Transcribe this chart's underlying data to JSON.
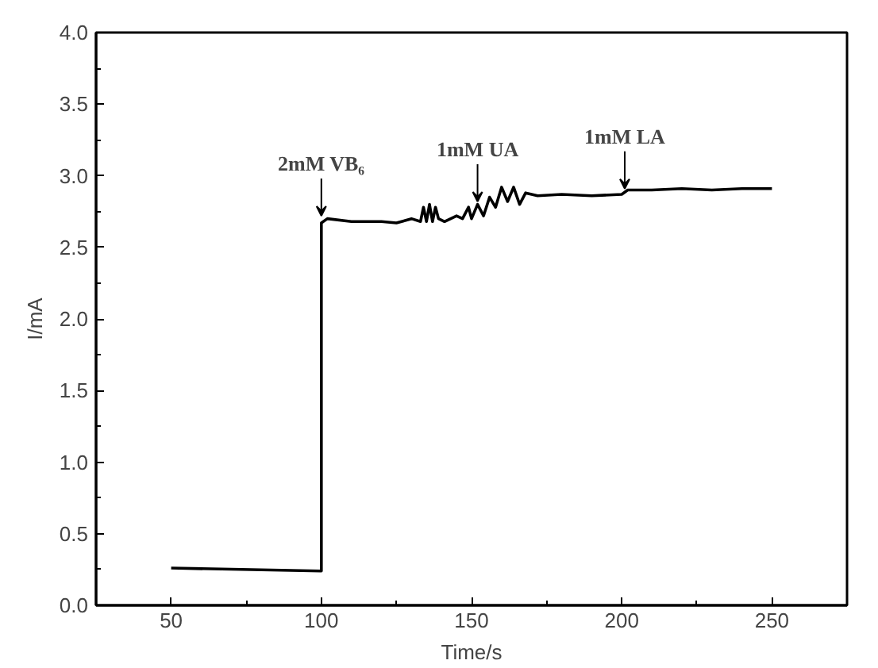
{
  "chart_data": {
    "type": "line",
    "xlabel": "Time/s",
    "ylabel": "I/mA",
    "x": [
      50,
      100,
      100,
      102,
      110,
      120,
      125,
      130,
      133,
      134,
      135,
      136,
      137,
      138,
      139,
      141,
      145,
      147,
      149,
      150,
      152,
      154,
      156,
      158,
      160,
      162,
      164,
      166,
      168,
      172,
      180,
      190,
      200,
      202,
      210,
      220,
      230,
      240,
      250
    ],
    "series": [
      {
        "color": "#000000",
        "values": [
          0.26,
          0.24,
          2.67,
          2.7,
          2.68,
          2.68,
          2.67,
          2.7,
          2.68,
          2.78,
          2.68,
          2.8,
          2.68,
          2.78,
          2.7,
          2.68,
          2.72,
          2.7,
          2.78,
          2.7,
          2.8,
          2.72,
          2.85,
          2.78,
          2.92,
          2.82,
          2.92,
          2.8,
          2.88,
          2.86,
          2.87,
          2.86,
          2.87,
          2.9,
          2.9,
          2.91,
          2.9,
          2.91,
          2.91
        ]
      }
    ],
    "annotations": [
      {
        "text": "2mM VB₆",
        "x": 100,
        "y": 2.7
      },
      {
        "text": "1mM UA",
        "x": 152,
        "y": 2.8
      },
      {
        "text": "1mM LA",
        "x": 201,
        "y": 2.89
      }
    ],
    "xlim": [
      25,
      275
    ],
    "xticks": [
      50,
      100,
      150,
      200,
      250
    ],
    "ylim": [
      0,
      4
    ],
    "yticks": [
      {
        "value": 0,
        "label": "0.0"
      },
      {
        "value": 0.5,
        "label": "0.5"
      },
      {
        "value": 1,
        "label": "1.0"
      },
      {
        "value": 1.5,
        "label": "1.5"
      },
      {
        "value": 2,
        "label": "2.0"
      },
      {
        "value": 2.5,
        "label": "2.5"
      },
      {
        "value": 3,
        "label": "3.0"
      },
      {
        "value": 3.5,
        "label": "3.5"
      },
      {
        "value": 4,
        "label": "4.0"
      }
    ],
    "grid": false,
    "marker": "none",
    "line_style": "solid"
  }
}
